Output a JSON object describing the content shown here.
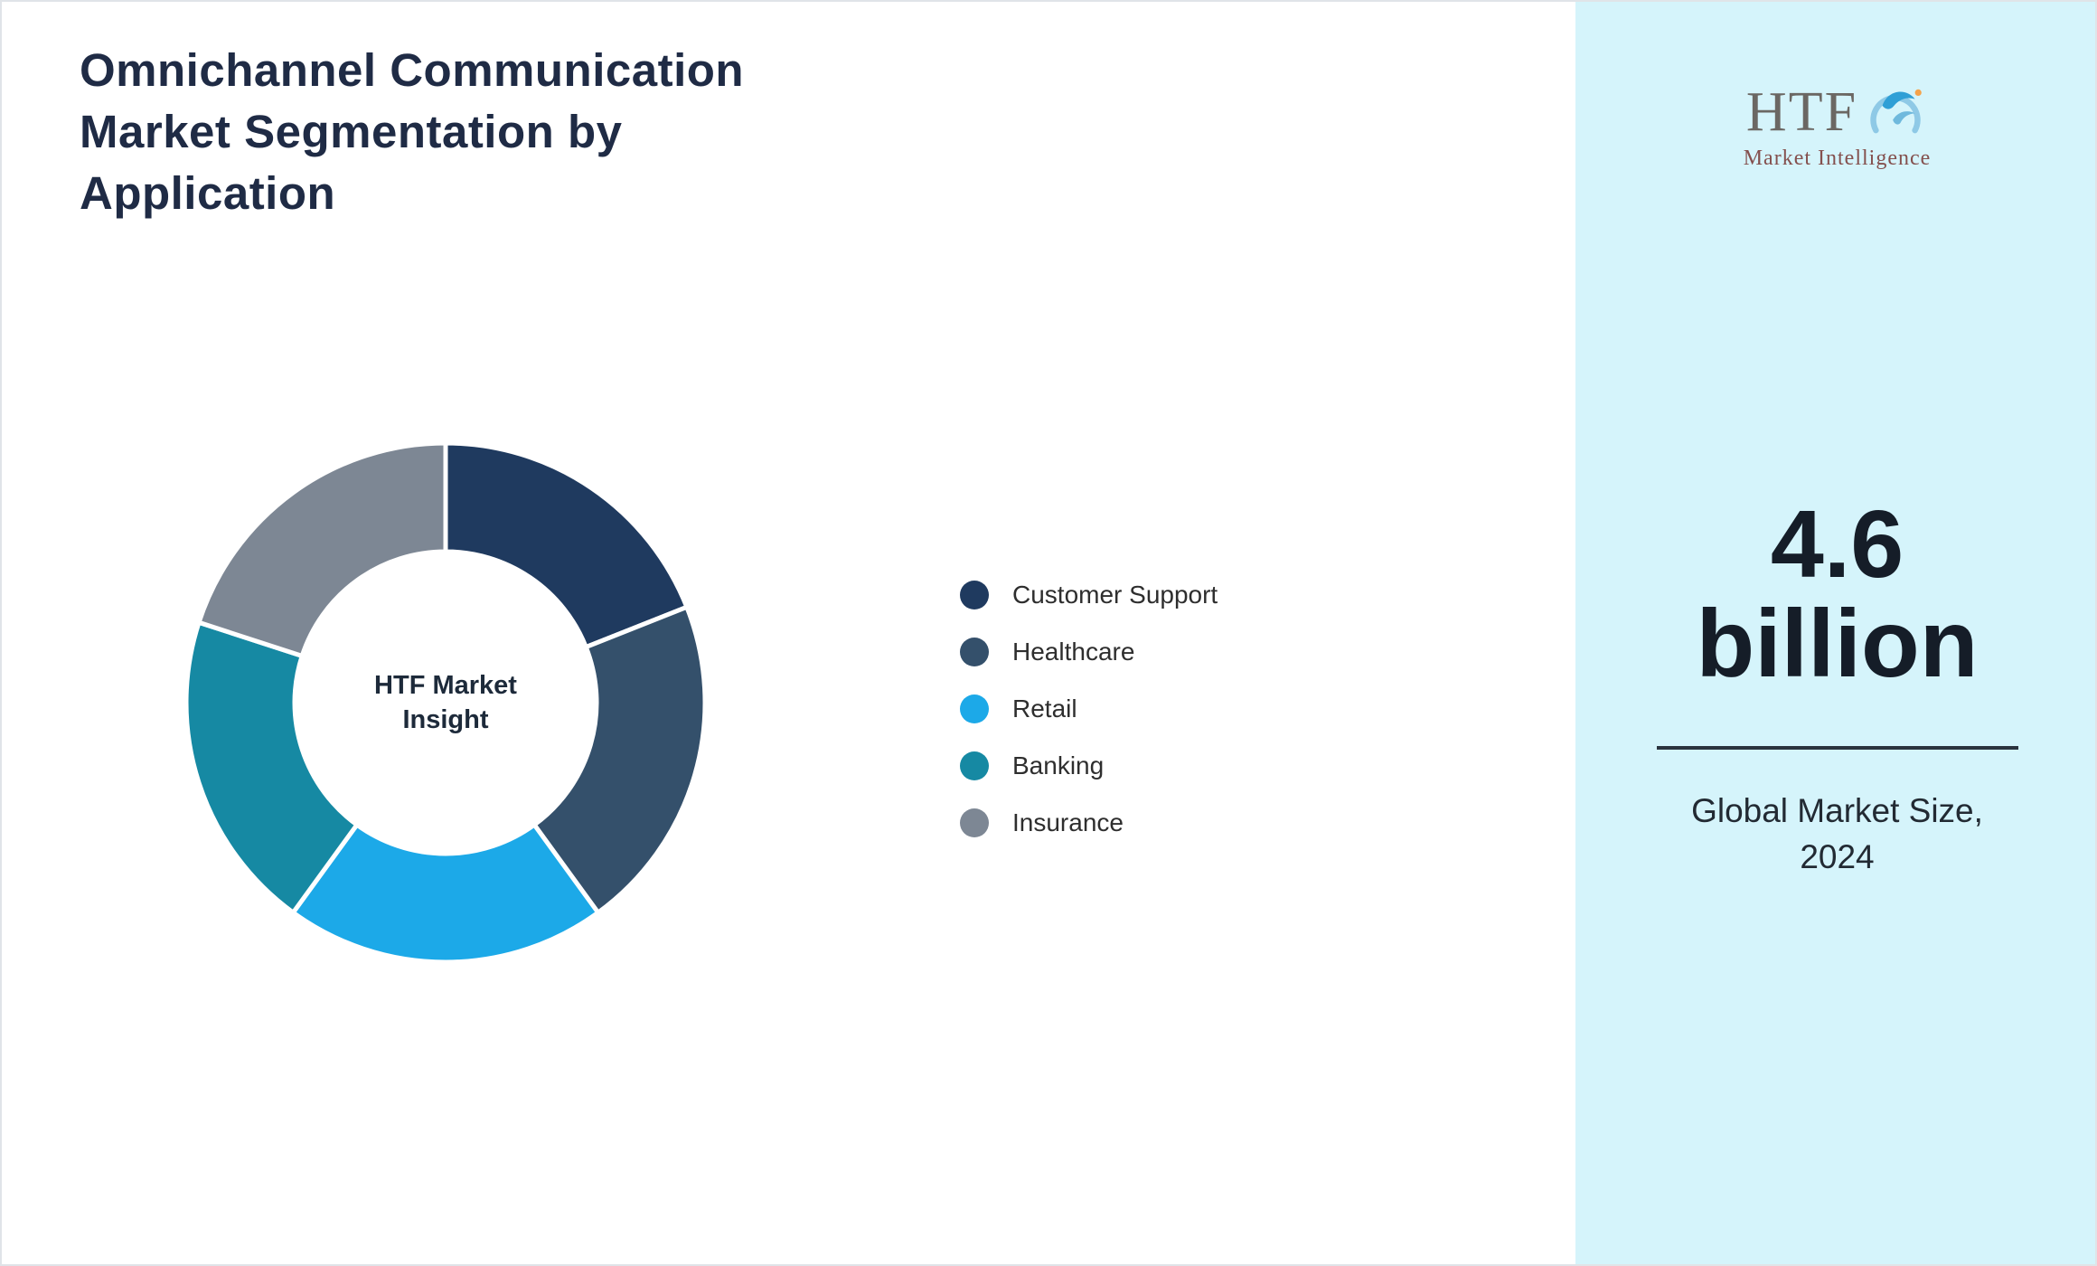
{
  "page": {
    "background": "#ffffff",
    "accent_panel_background": "#d5f4fb"
  },
  "header": {
    "title_lines": [
      "Omnichannel Communication",
      "Market Segmentation by",
      "Application"
    ]
  },
  "chart_data": {
    "type": "pie",
    "subtype": "donut",
    "title": "Omnichannel Communication Market Segmentation by Application",
    "center_label": "HTF Market Insight",
    "categories": [
      "Customer Support",
      "Healthcare",
      "Retail",
      "Banking",
      "Insurance"
    ],
    "values": [
      19,
      21,
      20,
      20,
      20
    ],
    "value_labels_shown": false,
    "colors": [
      "#1f3a5f",
      "#34506b",
      "#1ca9e8",
      "#1689a3",
      "#7d8794"
    ],
    "legend_position": "right",
    "start_angle_deg": 0,
    "direction": "clockwise"
  },
  "sidebar": {
    "logo": {
      "text": "HTF",
      "subtext": "Market Intelligence"
    },
    "stat": {
      "value_lines": [
        "4.6",
        "billion"
      ],
      "caption_lines": [
        "Global Market Size,",
        "2024"
      ]
    }
  }
}
